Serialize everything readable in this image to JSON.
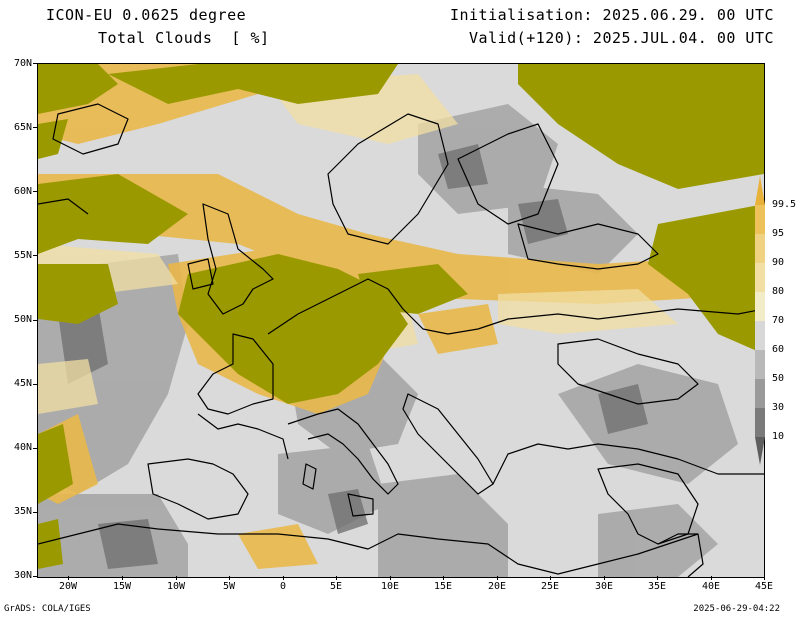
{
  "header": {
    "model": "ICON-EU 0.0625 degree",
    "variable": "Total Clouds  [ %]",
    "init": "Initialisation: 2025.06.29. 00 UTC",
    "valid": "Valid(+120): 2025.JUL.04. 00 UTC"
  },
  "axes": {
    "lat_labels": [
      "70N",
      "65N",
      "60N",
      "55N",
      "50N",
      "45N",
      "40N",
      "35N",
      "30N"
    ],
    "lon_labels": [
      "20W",
      "15W",
      "10W",
      "5W",
      "0",
      "5E",
      "10E",
      "15E",
      "20E",
      "25E",
      "30E",
      "35E",
      "40E",
      "45E"
    ],
    "lat_range": [
      30,
      70
    ],
    "lon_range": [
      -23,
      45
    ]
  },
  "colorbar": {
    "labels": [
      "99.5",
      "95",
      "90",
      "80",
      "70",
      "60",
      "50",
      "30",
      "10"
    ],
    "colors": [
      "#e8b13a",
      "#edc25a",
      "#f0d283",
      "#f1dfa3",
      "#f2ecc8",
      "#d8d8d8",
      "#b9b9b9",
      "#9a9a9a",
      "#7a7a7a",
      "#5e5e5e"
    ]
  },
  "palette": {
    "overcast": "#9a9a00",
    "clear": "#dadada",
    "coast": "#000000"
  },
  "footer": {
    "left": "GrADS: COLA/IGES",
    "right": "2025-06-29-04:22"
  }
}
